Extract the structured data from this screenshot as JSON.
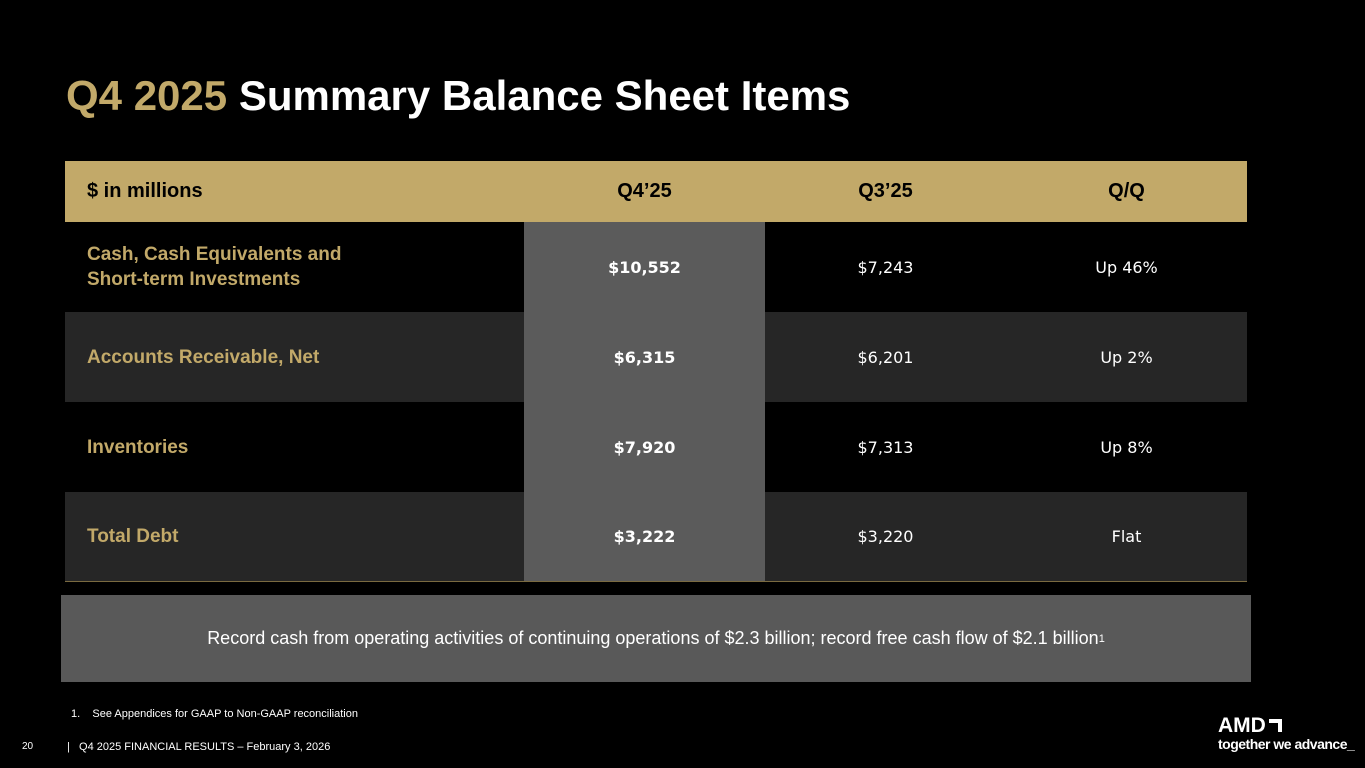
{
  "title": {
    "accent": "Q4 2025",
    "rest": "Summary Balance Sheet Items"
  },
  "table": {
    "headers": [
      "$ in millions",
      "Q4’25",
      "Q3’25",
      "Q/Q"
    ],
    "rows": [
      {
        "label_line1": "Cash, Cash Equivalents and",
        "label_line2": "Short-term Investments",
        "q4": "$10,552",
        "q3": "$7,243",
        "qq": "Up 46%"
      },
      {
        "label_line1": "Accounts Receivable, Net",
        "q4": "$6,315",
        "q3": "$6,201",
        "qq": "Up 2%"
      },
      {
        "label_line1": "Inventories",
        "q4": "$7,920",
        "q3": "$7,313",
        "qq": "Up 8%"
      },
      {
        "label_line1": "Total Debt",
        "q4": "$3,222",
        "q3": "$3,220",
        "qq": "Flat"
      }
    ]
  },
  "callout": {
    "text": "Record cash from operating activities of continuing operations of $2.3 billion; record free cash flow of $2.1 billion",
    "sup": "1"
  },
  "footnote": "1.    See Appendices for GAAP to Non-GAAP reconciliation",
  "footer": {
    "page": "20",
    "text": "|   Q4 2025 FINANCIAL RESULTS – February 3, 2026"
  },
  "logo": {
    "brand": "AMD",
    "tagline": "together we advance_"
  },
  "colors": {
    "accent": "#C2A969",
    "highlight_col": "#5b5b5b",
    "alt_row": "#262626"
  }
}
